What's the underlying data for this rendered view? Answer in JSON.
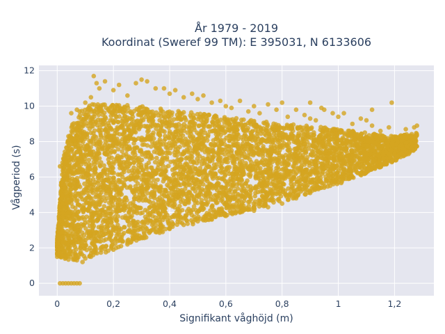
{
  "chart_data": {
    "type": "scatter",
    "title_lines": [
      "År 1979 - 2019",
      "Koordinat (Sweref 99 TM): E 395031, N 6133606"
    ],
    "xlabel": "Signifikant våghöjd (m)",
    "ylabel": "Vågperiod (s)",
    "xlim": [
      -0.065,
      1.34
    ],
    "ylim": [
      -0.7,
      12.3
    ],
    "x_ticks": [
      0,
      0.2,
      0.4,
      0.6,
      0.8,
      1,
      1.2
    ],
    "x_tick_labels": [
      "0",
      "0,2",
      "0,4",
      "0,6",
      "0,8",
      "1",
      "1,2"
    ],
    "y_ticks": [
      0,
      2,
      4,
      6,
      8,
      10,
      12
    ],
    "y_tick_labels": [
      "0",
      "2",
      "4",
      "6",
      "8",
      "10",
      "12"
    ],
    "grid": true,
    "legend": "none",
    "marker_color": "#d4a520",
    "plot_background": "#e5e6ef",
    "grid_color": "#ffffff",
    "series": [
      {
        "points": [
          [
            0.01,
            0
          ],
          [
            0.02,
            0
          ],
          [
            0.03,
            0
          ],
          [
            0.04,
            0
          ],
          [
            0.05,
            0
          ],
          [
            0.06,
            0
          ],
          [
            0.07,
            0
          ],
          [
            0.08,
            0
          ],
          [
            0.0,
            1.5
          ],
          [
            0.01,
            6.6
          ],
          [
            0.02,
            4.5
          ],
          [
            0.02,
            2.9
          ],
          [
            0.03,
            7.3
          ],
          [
            0.03,
            5.2
          ],
          [
            0.04,
            8.3
          ],
          [
            0.04,
            4.0
          ],
          [
            0.05,
            9.6
          ],
          [
            0.05,
            3.2
          ],
          [
            0.06,
            8.8
          ],
          [
            0.06,
            1.4
          ],
          [
            0.07,
            9.8
          ],
          [
            0.07,
            1.3
          ],
          [
            0.08,
            9.7
          ],
          [
            0.09,
            1.2
          ],
          [
            0.1,
            10.2
          ],
          [
            0.1,
            1.4
          ],
          [
            0.12,
            10.5
          ],
          [
            0.12,
            1.5
          ],
          [
            0.13,
            11.7
          ],
          [
            0.14,
            11.3
          ],
          [
            0.15,
            11.0
          ],
          [
            0.17,
            11.4
          ],
          [
            0.2,
            10.9
          ],
          [
            0.2,
            1.9
          ],
          [
            0.22,
            11.2
          ],
          [
            0.25,
            10.6
          ],
          [
            0.25,
            2.2
          ],
          [
            0.28,
            11.3
          ],
          [
            0.3,
            11.5
          ],
          [
            0.3,
            2.6
          ],
          [
            0.32,
            11.4
          ],
          [
            0.35,
            11.0
          ],
          [
            0.35,
            2.9
          ],
          [
            0.38,
            11.0
          ],
          [
            0.4,
            10.7
          ],
          [
            0.4,
            3.1
          ],
          [
            0.42,
            10.9
          ],
          [
            0.45,
            10.5
          ],
          [
            0.45,
            3.3
          ],
          [
            0.48,
            10.7
          ],
          [
            0.5,
            10.4
          ],
          [
            0.5,
            3.5
          ],
          [
            0.52,
            10.6
          ],
          [
            0.55,
            10.2
          ],
          [
            0.55,
            3.6
          ],
          [
            0.58,
            10.3
          ],
          [
            0.6,
            10.0
          ],
          [
            0.6,
            3.8
          ],
          [
            0.62,
            9.9
          ],
          [
            0.65,
            10.3
          ],
          [
            0.65,
            4.0
          ],
          [
            0.68,
            9.7
          ],
          [
            0.7,
            10.0
          ],
          [
            0.7,
            4.1
          ],
          [
            0.72,
            9.6
          ],
          [
            0.75,
            10.1
          ],
          [
            0.75,
            4.3
          ],
          [
            0.78,
            9.8
          ],
          [
            0.8,
            10.2
          ],
          [
            0.8,
            4.5
          ],
          [
            0.82,
            9.4
          ],
          [
            0.85,
            9.8
          ],
          [
            0.85,
            4.8
          ],
          [
            0.88,
            9.5
          ],
          [
            0.9,
            9.3
          ],
          [
            0.9,
            5.1
          ],
          [
            0.92,
            9.2
          ],
          [
            0.95,
            9.8
          ],
          [
            0.95,
            5.4
          ],
          [
            0.98,
            9.6
          ],
          [
            1.0,
            9.4
          ],
          [
            1.0,
            5.7
          ],
          [
            1.02,
            9.6
          ],
          [
            1.05,
            9.0
          ],
          [
            1.05,
            6.0
          ],
          [
            1.08,
            9.3
          ],
          [
            1.1,
            9.2
          ],
          [
            1.1,
            6.3
          ],
          [
            1.12,
            8.9
          ],
          [
            1.15,
            8.6
          ],
          [
            1.15,
            6.7
          ],
          [
            1.18,
            8.8
          ],
          [
            1.19,
            10.2
          ],
          [
            1.2,
            7.0
          ],
          [
            1.22,
            8.3
          ],
          [
            1.24,
            8.7
          ],
          [
            1.25,
            7.3
          ],
          [
            1.27,
            8.8
          ],
          [
            1.28,
            8.9
          ],
          [
            1.26,
            7.9
          ],
          [
            1.23,
            7.6
          ],
          [
            0.9,
            10.2
          ],
          [
            0.94,
            9.9
          ],
          [
            1.12,
            9.8
          ]
        ],
        "density_envelope": {
          "x": [
            0.0,
            0.02,
            0.05,
            0.1,
            0.15,
            0.2,
            0.3,
            0.4,
            0.5,
            0.6,
            0.7,
            0.8,
            0.9,
            1.0,
            1.1,
            1.2,
            1.28
          ],
          "y_low": [
            1.6,
            1.4,
            1.3,
            1.4,
            1.6,
            1.9,
            2.5,
            3.0,
            3.4,
            3.8,
            4.2,
            4.6,
            5.1,
            5.6,
            6.2,
            6.9,
            7.6
          ],
          "y_high": [
            2.5,
            7.0,
            9.0,
            10.0,
            10.2,
            10.1,
            10.0,
            9.8,
            9.6,
            9.4,
            9.2,
            9.0,
            8.9,
            8.7,
            8.5,
            8.3,
            8.5
          ]
        }
      }
    ]
  }
}
